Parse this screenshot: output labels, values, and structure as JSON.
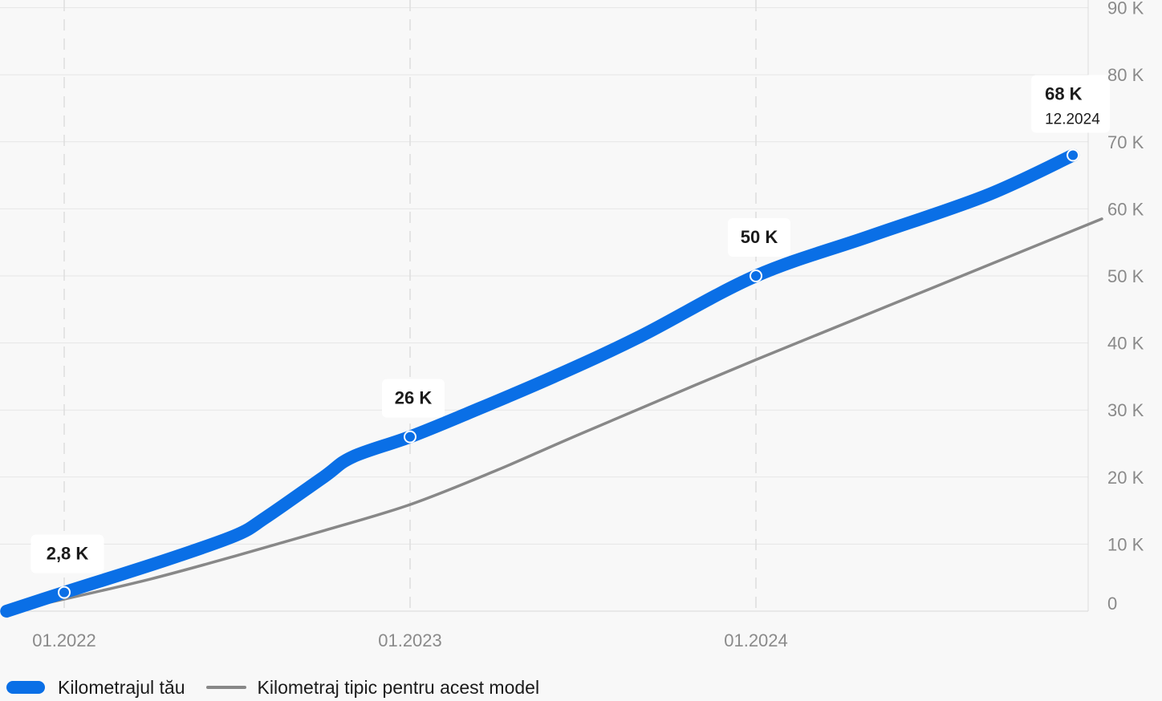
{
  "chart_data": {
    "type": "line",
    "x_ticks": [
      "01.2022",
      "01.2023",
      "01.2024"
    ],
    "y_ticks": [
      "0",
      "10 K",
      "20 K",
      "30 K",
      "40 K",
      "50 K",
      "60 K",
      "70 K",
      "80 K",
      "90 K"
    ],
    "ylim": [
      0,
      90
    ],
    "y_unit": "thousand km",
    "series": [
      {
        "name": "Kilometrajul tău",
        "color": "#0a6fe6",
        "points": [
          [
            "2021-11",
            0
          ],
          [
            "2022-01",
            2.8
          ],
          [
            "2022-03",
            5.5
          ],
          [
            "2022-05",
            8.3
          ],
          [
            "2022-07",
            11.4
          ],
          [
            "2022-08",
            14
          ],
          [
            "2022-10",
            20
          ],
          [
            "2022-11",
            23
          ],
          [
            "2023-01",
            26
          ],
          [
            "2023-03",
            29.5
          ],
          [
            "2023-06",
            35
          ],
          [
            "2023-09",
            41
          ],
          [
            "2024-01",
            50
          ],
          [
            "2024-05",
            56
          ],
          [
            "2024-09",
            62
          ],
          [
            "2024-12",
            68
          ]
        ],
        "highlights": [
          {
            "date": "2022-01",
            "value": 2.8,
            "label": "2,8 K"
          },
          {
            "date": "2023-01",
            "value": 26,
            "label": "26 K"
          },
          {
            "date": "2024-01",
            "value": 50,
            "label": "50 K"
          },
          {
            "date": "2024-12",
            "value": 68,
            "label": "68 K",
            "date_label": "12.2024"
          }
        ]
      },
      {
        "name": "Kilometraj tipic pentru acest model",
        "color": "#888888",
        "points": [
          [
            "2021-11",
            0
          ],
          [
            "2022-01",
            1.8
          ],
          [
            "2022-04",
            4.8
          ],
          [
            "2022-07",
            8.3
          ],
          [
            "2022-10",
            12
          ],
          [
            "2023-01",
            15.9
          ],
          [
            "2023-04",
            21
          ],
          [
            "2023-07",
            26.6
          ],
          [
            "2024-01",
            37.5
          ],
          [
            "2024-07",
            48
          ],
          [
            "2025-01",
            58.5
          ]
        ]
      }
    ],
    "grid": true,
    "legend_position": "bottom-left",
    "y_axis_side": "right"
  }
}
